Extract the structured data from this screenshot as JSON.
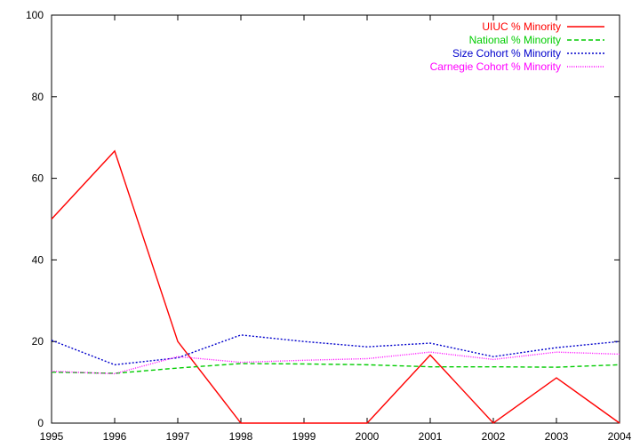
{
  "chart_data": {
    "type": "line",
    "title": "",
    "xlabel": "",
    "ylabel": "",
    "x": [
      1995,
      1996,
      1997,
      1998,
      1999,
      2000,
      2001,
      2002,
      2003,
      2004
    ],
    "xlim": [
      1995,
      2004
    ],
    "ylim": [
      0,
      100
    ],
    "x_ticks": [
      "1995",
      "1996",
      "1997",
      "1998",
      "1999",
      "2000",
      "2001",
      "2002",
      "2003",
      "2004"
    ],
    "y_ticks": [
      "0",
      "20",
      "40",
      "60",
      "80",
      "100"
    ],
    "grid": false,
    "legend_position": "top-right",
    "series": [
      {
        "name": "UIUC % Minority",
        "color": "#ff0000",
        "dash": "solid",
        "values": [
          50,
          66.7,
          20,
          0,
          0,
          0,
          16.7,
          0,
          11.1,
          0
        ]
      },
      {
        "name": "National % Minority",
        "color": "#00cc00",
        "dash": "dashed",
        "values": [
          12.5,
          12.2,
          13.5,
          14.6,
          14.5,
          14.3,
          13.8,
          13.8,
          13.7,
          14.3
        ]
      },
      {
        "name": "Size Cohort % Minority",
        "color": "#0000cc",
        "dash": "dotted",
        "values": [
          20.3,
          14.3,
          16.0,
          21.6,
          20.0,
          18.7,
          19.6,
          16.3,
          18.5,
          20.0
        ]
      },
      {
        "name": "Carnegie Cohort % Minority",
        "color": "#ff00ff",
        "dash": "fine-dotted",
        "values": [
          12.7,
          12.1,
          16.3,
          14.9,
          15.4,
          15.8,
          17.4,
          15.6,
          17.4,
          16.9
        ]
      }
    ]
  }
}
